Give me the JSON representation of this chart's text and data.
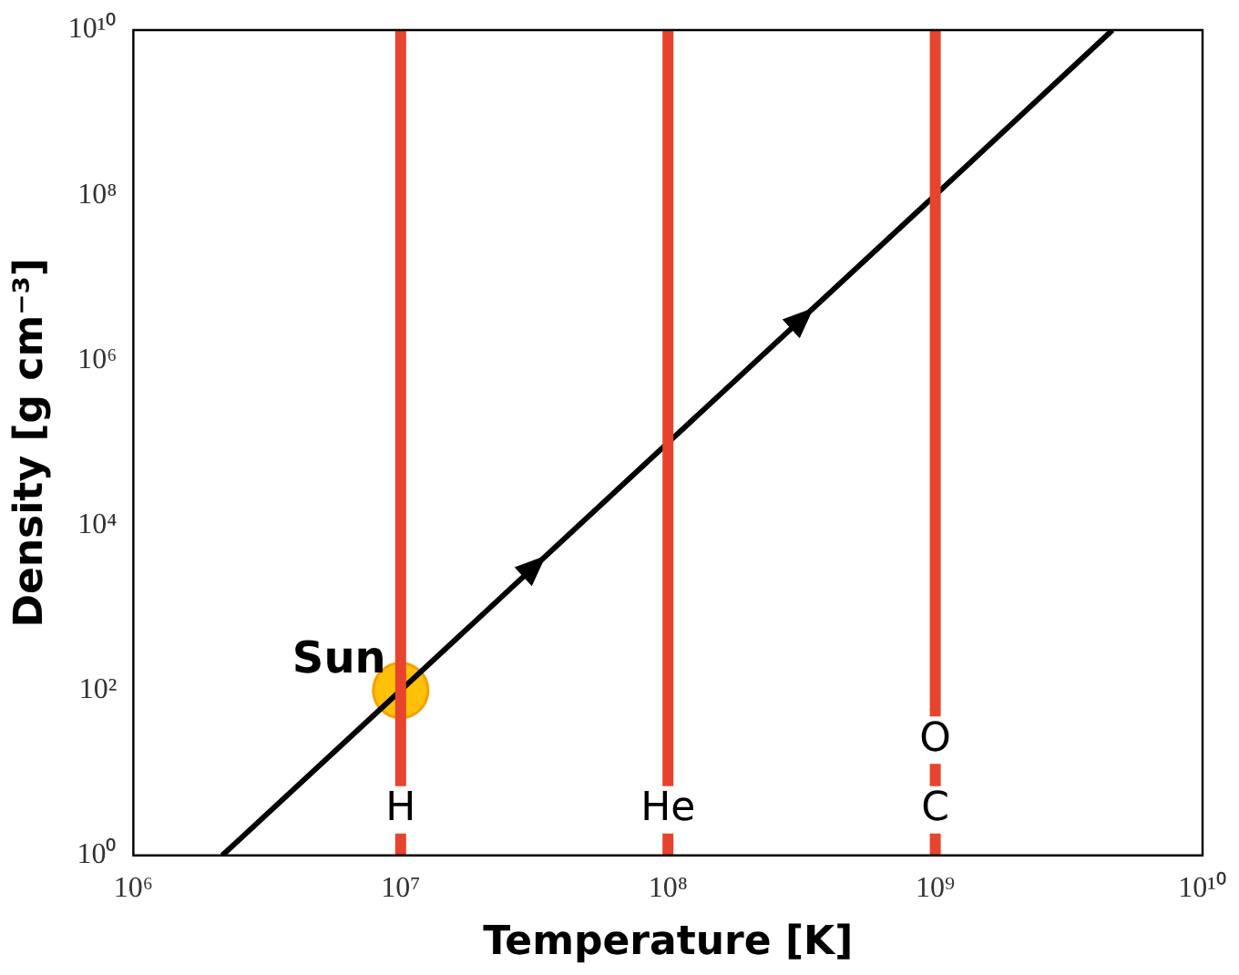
{
  "chart_data": {
    "type": "line",
    "xlabel": "Temperature [K]",
    "ylabel": "Density [g cm⁻³]",
    "log": "xy",
    "xlim": [
      1000000,
      10000000000
    ],
    "ylim": [
      1,
      10000000000
    ],
    "xticks": [
      {
        "value": 1000000,
        "label": "10⁶"
      },
      {
        "value": 10000000,
        "label": "10⁷"
      },
      {
        "value": 100000000,
        "label": "10⁸"
      },
      {
        "value": 1000000000,
        "label": "10⁹"
      },
      {
        "value": 10000000000,
        "label": "10¹⁰"
      }
    ],
    "yticks": [
      {
        "value": 1,
        "label": "10⁰"
      },
      {
        "value": 100,
        "label": "10²"
      },
      {
        "value": 10000,
        "label": "10⁴"
      },
      {
        "value": 1000000,
        "label": "10⁶"
      },
      {
        "value": 100000000,
        "label": "10⁸"
      },
      {
        "value": 10000000000,
        "label": "10¹⁰"
      }
    ],
    "grid": false,
    "legend": false,
    "series": [
      {
        "color": "#000000",
        "marker": "none",
        "line_style": "solid",
        "x": [
          2150000,
          10000000,
          100000000,
          1000000000,
          4600000000
        ],
        "values": [
          1,
          100,
          100000,
          100000000,
          10000000000
        ]
      },
      {
        "type": "scatter",
        "name": "Sun",
        "color": "#ffc107",
        "marker": "circle",
        "x": [
          10000000
        ],
        "values": [
          100
        ]
      }
    ],
    "ref_lines": [
      {
        "axis": "x",
        "value": 10000000,
        "label": "H",
        "color": "#e8432d",
        "line_style": "solid"
      },
      {
        "axis": "x",
        "value": 100000000,
        "label": "He",
        "color": "#e8432d",
        "line_style": "solid"
      },
      {
        "axis": "x",
        "value": 1000000000,
        "label": "C",
        "color": "#e8432d",
        "line_style": "solid"
      }
    ],
    "annotations": [
      {
        "text": "O",
        "x": 1000000000,
        "y": 25
      }
    ]
  }
}
